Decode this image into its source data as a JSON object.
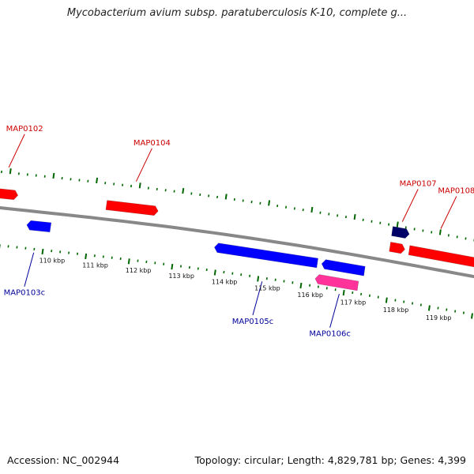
{
  "title": "Mycobacterium avium subsp. paratuberculosis K-10, complete g...",
  "footer": {
    "accession": "Accession: NC_002944",
    "summary": "Topology: circular; Length: 4,829,781 bp; Genes: 4,399"
  },
  "colors": {
    "forward_gene": "#ff0000",
    "reverse_gene": "#0000ff",
    "dark_gene": "#000066",
    "pink_gene": "#ff3399",
    "backbone": "#888888",
    "ticks": "#006600",
    "forward_label": "#cc0000",
    "reverse_label": "#000099"
  },
  "scale": {
    "start_kbp": 109,
    "end_kbp": 119.9,
    "ticks_per_kbp": 5,
    "labels": [
      "110 kbp",
      "111 kbp",
      "112 kbp",
      "113 kbp",
      "114 kbp",
      "115 kbp",
      "116 kbp",
      "117 kbp",
      "118 kbp",
      "119 kbp"
    ]
  },
  "genes": [
    {
      "id": "MAP0102",
      "strand": "forward",
      "color": "forward_gene",
      "start_kbp": 108.8,
      "end_kbp": 109.25
    },
    {
      "id": "MAP0103c",
      "strand": "reverse",
      "color": "reverse_gene",
      "start_kbp": 109.55,
      "end_kbp": 110.1
    },
    {
      "id": "MAP0104",
      "strand": "forward",
      "color": "forward_gene",
      "start_kbp": 111.3,
      "end_kbp": 112.5
    },
    {
      "id": "MAP0105c",
      "strand": "reverse",
      "color": "reverse_gene",
      "start_kbp": 113.9,
      "end_kbp": 116.3
    },
    {
      "id": "MAP0106c",
      "strand": "reverse",
      "color": "reverse_gene",
      "start_kbp": 116.4,
      "end_kbp": 117.4
    },
    {
      "id": "MAP0106c_pink",
      "strand": "reverse",
      "color": "pink_gene",
      "start_kbp": 116.3,
      "end_kbp": 117.3,
      "lane": 2
    },
    {
      "id": "MAP0107",
      "strand": "forward",
      "color": "dark_gene",
      "start_kbp": 117.9,
      "end_kbp": 118.3,
      "lane": 2
    },
    {
      "id": "MAP0107b",
      "strand": "forward",
      "color": "forward_gene",
      "start_kbp": 117.9,
      "end_kbp": 118.25
    },
    {
      "id": "MAP0108",
      "strand": "forward",
      "color": "forward_gene",
      "start_kbp": 118.35,
      "end_kbp": 120.0
    }
  ],
  "labels": [
    {
      "text": "MAP0102",
      "strand": "forward",
      "kbp": 108.95
    },
    {
      "text": "MAP0104",
      "strand": "forward",
      "kbp": 111.9
    },
    {
      "text": "MAP0107",
      "strand": "forward",
      "kbp": 118.1
    },
    {
      "text": "MAP0108",
      "strand": "forward",
      "kbp": 119.0
    },
    {
      "text": "MAP0103c",
      "strand": "reverse",
      "kbp": 109.8
    },
    {
      "text": "MAP0105c",
      "strand": "reverse",
      "kbp": 115.1
    },
    {
      "text": "MAP0106c",
      "strand": "reverse",
      "kbp": 116.9
    }
  ]
}
